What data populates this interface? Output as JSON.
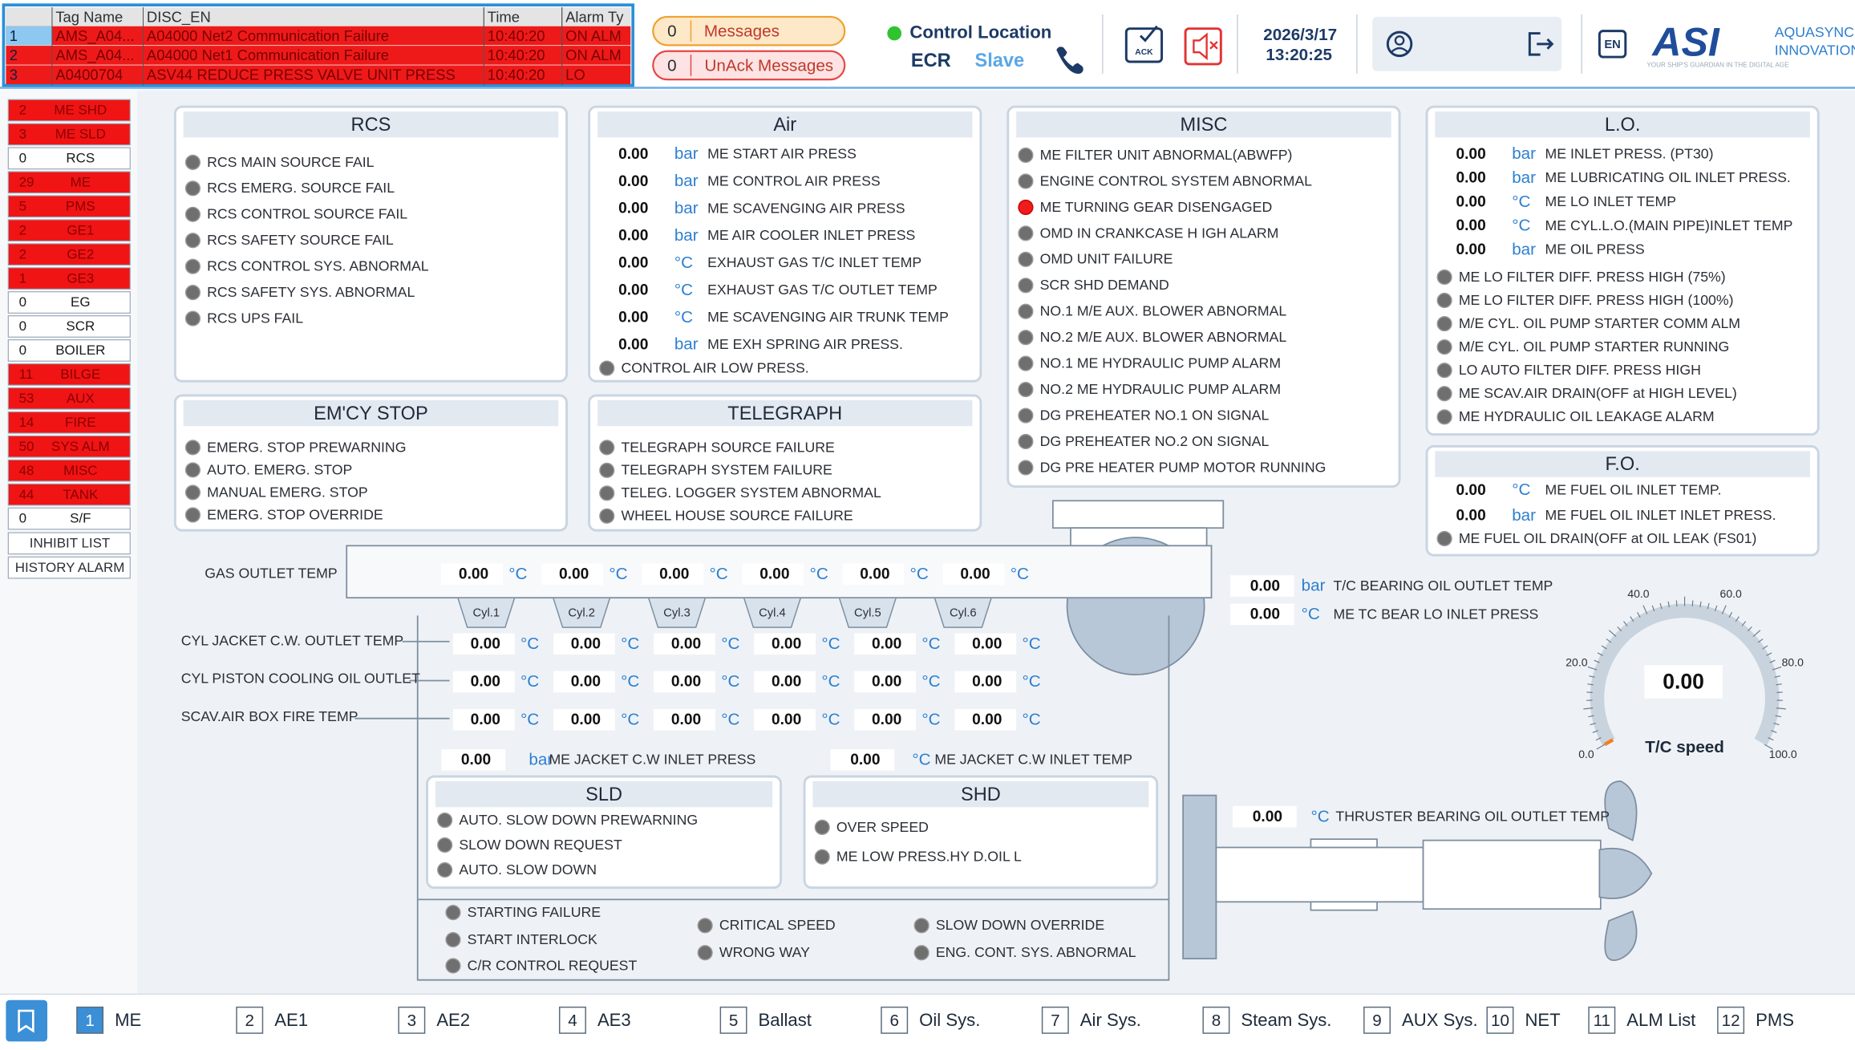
{
  "alarm_table": {
    "headers": [
      "Tag Name",
      "DISC_EN",
      "Time",
      "Alarm Ty"
    ],
    "rows": [
      [
        "1",
        "AMS_A04...",
        "A04000 Net2 Communication Failure",
        "10:40:20",
        "ON ALM"
      ],
      [
        "2",
        "AMS_A04...",
        "A04000 Net1 Communication Failure",
        "10:40:20",
        "ON ALM"
      ],
      [
        "3",
        "A0400704",
        "ASV44 REDUCE PRESS VALVE UNIT  PRESS",
        "10:40:20",
        "LO"
      ]
    ]
  },
  "messages": [
    {
      "count": "0",
      "label": "Messages"
    },
    {
      "count": "0",
      "label": "UnAck Messages"
    }
  ],
  "control_location": {
    "title": "Control Location",
    "location": "ECR",
    "mode": "Slave"
  },
  "ack": "ACK",
  "datetime": {
    "date": "2026/3/17",
    "time": "13:20:25"
  },
  "language": "EN",
  "logo": {
    "brand": "ASI",
    "line1": "AQUASYNC",
    "line2": "INNOVATION",
    "tagline": "YOUR SHIP'S GUARDIAN IN THE DIGITAL AGE"
  },
  "sidebar": {
    "groups": [
      {
        "count": "2",
        "name": "ME SHD",
        "alarm": true
      },
      {
        "count": "3",
        "name": "ME SLD",
        "alarm": true
      },
      {
        "count": "0",
        "name": "RCS",
        "alarm": false
      },
      {
        "count": "29",
        "name": "ME",
        "alarm": true
      },
      {
        "count": "5",
        "name": "PMS",
        "alarm": true
      },
      {
        "count": "2",
        "name": "GE1",
        "alarm": true
      },
      {
        "count": "2",
        "name": "GE2",
        "alarm": true
      },
      {
        "count": "1",
        "name": "GE3",
        "alarm": true
      },
      {
        "count": "0",
        "name": "EG",
        "alarm": false
      },
      {
        "count": "0",
        "name": "SCR",
        "alarm": false
      },
      {
        "count": "0",
        "name": "BOILER",
        "alarm": false
      },
      {
        "count": "11",
        "name": "BILGE",
        "alarm": true
      },
      {
        "count": "53",
        "name": "AUX",
        "alarm": true
      },
      {
        "count": "14",
        "name": "FIRE",
        "alarm": true
      },
      {
        "count": "50",
        "name": "SYS ALM",
        "alarm": true
      },
      {
        "count": "48",
        "name": "MISC",
        "alarm": true
      },
      {
        "count": "44",
        "name": "TANK",
        "alarm": true
      },
      {
        "count": "0",
        "name": "S/F",
        "alarm": false
      }
    ],
    "buttons": [
      "INHIBIT LIST",
      "HISTORY ALARM"
    ]
  },
  "panels": [
    {
      "title": "RCS",
      "readings": [],
      "indicators": [
        {
          "label": "RCS MAIN SOURCE FAIL",
          "active": false
        },
        {
          "label": "RCS EMERG. SOURCE FAIL",
          "active": false
        },
        {
          "label": "RCS CONTROL SOURCE FAIL",
          "active": false
        },
        {
          "label": "RCS SAFETY SOURCE FAIL",
          "active": false
        },
        {
          "label": "RCS CONTROL SYS. ABNORMAL",
          "active": false
        },
        {
          "label": "RCS SAFETY SYS. ABNORMAL",
          "active": false
        },
        {
          "label": "RCS UPS FAIL",
          "active": false
        }
      ]
    },
    {
      "title": "Air",
      "readings": [
        {
          "value": "0.00",
          "unit": "bar",
          "label": "ME START AIR PRESS"
        },
        {
          "value": "0.00",
          "unit": "bar",
          "label": "ME CONTROL AIR PRESS"
        },
        {
          "value": "0.00",
          "unit": "bar",
          "label": "ME SCAVENGING AIR PRESS"
        },
        {
          "value": "0.00",
          "unit": "bar",
          "label": "ME AIR COOLER INLET PRESS"
        },
        {
          "value": "0.00",
          "unit": "°C",
          "label": "EXHAUST GAS T/C INLET TEMP"
        },
        {
          "value": "0.00",
          "unit": "°C",
          "label": "EXHAUST GAS T/C OUTLET TEMP"
        },
        {
          "value": "0.00",
          "unit": "°C",
          "label": "ME SCAVENGING AIR TRUNK TEMP"
        },
        {
          "value": "0.00",
          "unit": "bar",
          "label": "ME EXH SPRING AIR PRESS."
        }
      ],
      "indicators": [
        {
          "label": "CONTROL AIR LOW PRESS.",
          "active": false
        }
      ]
    },
    {
      "title": "MISC",
      "readings": [],
      "indicators": [
        {
          "label": "ME FILTER UNIT ABNORMAL(ABWFP)",
          "active": false
        },
        {
          "label": "ENGINE CONTROL SYSTEM ABNORMAL",
          "active": false
        },
        {
          "label": "ME TURNING GEAR DISENGAGED",
          "active": true
        },
        {
          "label": "OMD IN CRANKCASE H IGH ALARM",
          "active": false
        },
        {
          "label": "OMD UNIT FAILURE",
          "active": false
        },
        {
          "label": "SCR SHD DEMAND",
          "active": false
        },
        {
          "label": "NO.1 M/E AUX. BLOWER ABNORMAL",
          "active": false
        },
        {
          "label": "NO.2 M/E AUX. BLOWER ABNORMAL",
          "active": false
        },
        {
          "label": "NO.1 ME HYDRAULIC PUMP ALARM",
          "active": false
        },
        {
          "label": "NO.2 ME HYDRAULIC PUMP ALARM",
          "active": false
        },
        {
          "label": "DG PREHEATER NO.1 ON SIGNAL",
          "active": false
        },
        {
          "label": "DG PREHEATER NO.2 ON SIGNAL",
          "active": false
        },
        {
          "label": "DG PRE HEATER PUMP MOTOR RUNNING",
          "active": false
        }
      ]
    },
    {
      "title": "L.O.",
      "readings": [
        {
          "value": "0.00",
          "unit": "bar",
          "label": "ME INLET PRESS. (PT30)"
        },
        {
          "value": "0.00",
          "unit": "bar",
          "label": "ME LUBRICATING OIL INLET PRESS."
        },
        {
          "value": "0.00",
          "unit": "°C",
          "label": "ME LO INLET TEMP"
        },
        {
          "value": "0.00",
          "unit": "°C",
          "label": "ME CYL.L.O.(MAIN PIPE)INLET TEMP"
        },
        {
          "value": "0.00",
          "unit": "bar",
          "label": "ME OIL PRESS"
        }
      ],
      "indicators": [
        {
          "label": "ME LO FILTER DIFF. PRESS HIGH (75%)",
          "active": false
        },
        {
          "label": "ME LO FILTER DIFF. PRESS HIGH (100%)",
          "active": false
        },
        {
          "label": "M/E CYL. OIL PUMP STARTER COMM ALM",
          "active": false
        },
        {
          "label": "M/E CYL. OIL PUMP STARTER RUNNING",
          "active": false
        },
        {
          "label": "LO AUTO FILTER DIFF. PRESS HIGH",
          "active": false
        },
        {
          "label": "ME SCAV.AIR DRAIN(OFF at HIGH LEVEL)",
          "active": false
        },
        {
          "label": "ME HYDRAULIC OIL LEAKAGE ALARM",
          "active": false
        }
      ]
    },
    {
      "title": "EM'CY STOP",
      "readings": [],
      "indicators": [
        {
          "label": "EMERG. STOP PREWARNING",
          "active": false
        },
        {
          "label": "AUTO. EMERG. STOP",
          "active": false
        },
        {
          "label": "MANUAL EMERG. STOP",
          "active": false
        },
        {
          "label": "EMERG. STOP OVERRIDE",
          "active": false
        }
      ]
    },
    {
      "title": "TELEGRAPH",
      "readings": [],
      "indicators": [
        {
          "label": "TELEGRAPH SOURCE FAILURE",
          "active": false
        },
        {
          "label": "TELEGRAPH SYSTEM FAILURE",
          "active": false
        },
        {
          "label": "TELEG. LOGGER SYSTEM ABNORMAL",
          "active": false
        },
        {
          "label": "WHEEL HOUSE SOURCE FAILURE",
          "active": false
        }
      ]
    },
    {
      "title": "F.O.",
      "readings": [
        {
          "value": "0.00",
          "unit": "°C",
          "label": "ME FUEL OIL INLET TEMP."
        },
        {
          "value": "0.00",
          "unit": "bar",
          "label": "ME FUEL OIL INLET INLET PRESS."
        }
      ],
      "indicators": [
        {
          "label": "ME FUEL OIL DRAIN(OFF at OIL LEAK (FS01)",
          "active": false
        }
      ]
    },
    {
      "title": "SLD",
      "readings": [],
      "indicators": [
        {
          "label": "AUTO. SLOW DOWN PREWARNING",
          "active": false
        },
        {
          "label": "SLOW DOWN REQUEST",
          "active": false
        },
        {
          "label": "AUTO. SLOW DOWN",
          "active": false
        }
      ]
    },
    {
      "title": "SHD",
      "readings": [],
      "indicators": [
        {
          "label": "OVER SPEED",
          "active": false
        },
        {
          "label": "ME LOW PRESS.HY D.OIL L",
          "active": false
        }
      ]
    }
  ],
  "engine": {
    "gas_outlet": {
      "label": "GAS OUTLET TEMP",
      "unit": "°C",
      "values": [
        "0.00",
        "0.00",
        "0.00",
        "0.00",
        "0.00",
        "0.00"
      ]
    },
    "cylinders": [
      "Cyl.1",
      "Cyl.2",
      "Cyl.3",
      "Cyl.4",
      "Cyl.5",
      "Cyl.6"
    ],
    "rows": [
      {
        "label": "CYL JACKET C.W. OUTLET TEMP",
        "unit": "°C",
        "values": [
          "0.00",
          "0.00",
          "0.00",
          "0.00",
          "0.00",
          "0.00"
        ]
      },
      {
        "label": "CYL PISTON COOLING OIL OUTLET",
        "unit": "°C",
        "values": [
          "0.00",
          "0.00",
          "0.00",
          "0.00",
          "0.00",
          "0.00"
        ]
      },
      {
        "label": "SCAV.AIR BOX FIRE TEMP",
        "unit": "°C",
        "values": [
          "0.00",
          "0.00",
          "0.00",
          "0.00",
          "0.00",
          "0.00"
        ]
      }
    ],
    "readings": [
      {
        "value": "0.00",
        "unit": "bar",
        "label": "ME JACKET C.W INLET PRESS"
      },
      {
        "value": "0.00",
        "unit": "°C",
        "label": "ME JACKET C.W INLET TEMP"
      },
      {
        "value": "0.00",
        "unit": "bar",
        "label": "T/C BEARING OIL OUTLET TEMP"
      },
      {
        "value": "0.00",
        "unit": "°C",
        "label": "ME TC BEAR LO INLET PRESS"
      },
      {
        "value": "0.00",
        "unit": "°C",
        "label": "THRUSTER BEARING OIL OUTLET TEMP"
      }
    ],
    "indicators": [
      {
        "label": "STARTING FAILURE",
        "active": false
      },
      {
        "label": "START INTERLOCK",
        "active": false
      },
      {
        "label": "C/R CONTROL REQUEST",
        "active": false
      },
      {
        "label": "CRITICAL SPEED",
        "active": false
      },
      {
        "label": "WRONG WAY",
        "active": false
      },
      {
        "label": "SLOW DOWN OVERRIDE",
        "active": false
      },
      {
        "label": "ENG. CONT. SYS. ABNORMAL",
        "active": false
      }
    ]
  },
  "gauge": {
    "label": "T/C speed",
    "value": 0,
    "value_label": "0.00",
    "range": [
      0,
      100
    ],
    "ticks": [
      {
        "value": 0,
        "label": "0.0"
      },
      {
        "value": 20,
        "label": "20.0"
      },
      {
        "value": 40,
        "label": "40.0"
      },
      {
        "value": 60,
        "label": "60.0"
      },
      {
        "value": 80,
        "label": "80.0"
      },
      {
        "value": 100,
        "label": "100.0"
      }
    ]
  },
  "tabs": [
    {
      "number": "1",
      "label": "ME",
      "active": true
    },
    {
      "number": "2",
      "label": "AE1",
      "active": false
    },
    {
      "number": "3",
      "label": "AE2",
      "active": false
    },
    {
      "number": "4",
      "label": "AE3",
      "active": false
    },
    {
      "number": "5",
      "label": "Ballast",
      "active": false
    },
    {
      "number": "6",
      "label": "Oil Sys.",
      "active": false
    },
    {
      "number": "7",
      "label": "Air Sys.",
      "active": false
    },
    {
      "number": "8",
      "label": "Steam Sys.",
      "active": false
    },
    {
      "number": "9",
      "label": "AUX Sys.",
      "active": false
    },
    {
      "number": "10",
      "label": "NET",
      "active": false
    },
    {
      "number": "11",
      "label": "ALM List",
      "active": false
    },
    {
      "number": "12",
      "label": "PMS",
      "active": false
    }
  ]
}
